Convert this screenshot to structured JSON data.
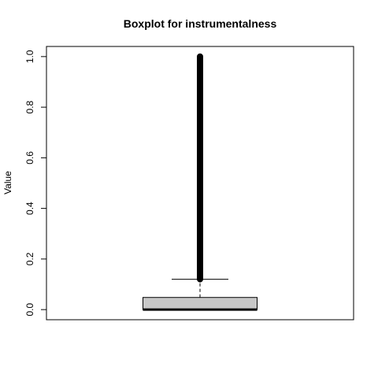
{
  "chart_data": {
    "type": "boxplot",
    "title": "Boxplot for instrumentalness",
    "xlabel": "",
    "ylabel": "Value",
    "ylim": [
      -0.04,
      1.04
    ],
    "yticks": [
      0.0,
      0.2,
      0.4,
      0.6,
      0.8,
      1.0
    ],
    "ytick_labels": [
      "0.0",
      "0.2",
      "0.4",
      "0.6",
      "0.8",
      "1.0"
    ],
    "grid": false,
    "box": {
      "min": 0.0,
      "q1": 0.0,
      "median": 0.0,
      "q3": 0.048,
      "whisker_low": 0.0,
      "whisker_high": 0.12
    },
    "outliers_range": [
      0.12,
      1.0
    ],
    "colors": {
      "box_fill": "#c8c8c8",
      "outline": "#000000"
    }
  }
}
